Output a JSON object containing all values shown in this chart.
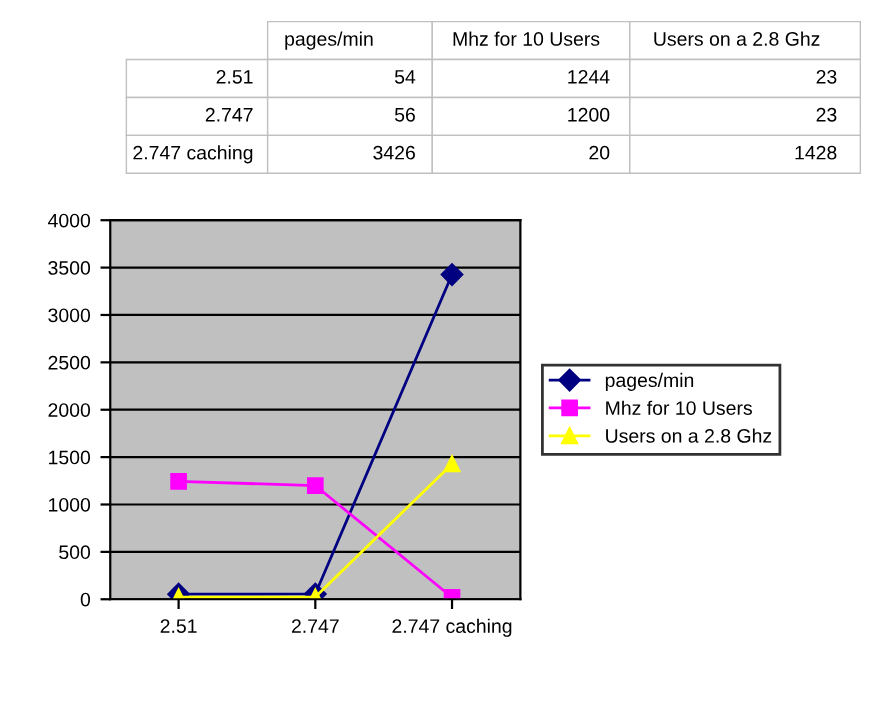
{
  "chart_data": [
    {
      "type": "other",
      "categories": [
        "2.51",
        "2.747",
        "2.747 caching"
      ],
      "series": [
        {
          "name": "pages/min",
          "values": [
            54,
            56,
            3426
          ]
        },
        {
          "name": "Mhz for 10 Users",
          "values": [
            1244,
            1200,
            20
          ]
        },
        {
          "name": "Users on a 2.8 Ghz",
          "values": [
            23,
            23,
            1428
          ]
        }
      ],
      "data_labels": true
    },
    {
      "type": "line",
      "categories": [
        "2.51",
        "2.747",
        "2.747 caching"
      ],
      "series": [
        {
          "name": "pages/min",
          "color": "#000080",
          "marker": "diamond",
          "values": [
            54,
            56,
            3426
          ]
        },
        {
          "name": "Mhz for 10 Users",
          "color": "#ff00ff",
          "marker": "square",
          "values": [
            1244,
            1200,
            20
          ]
        },
        {
          "name": "Users on a 2.8 Ghz",
          "color": "#ffff00",
          "marker": "triangle",
          "values": [
            23,
            23,
            1428
          ]
        }
      ],
      "ylim": [
        0,
        4000
      ],
      "yticks": [
        0,
        500,
        1000,
        1500,
        2000,
        2500,
        3000,
        3500,
        4000
      ],
      "grid": "y",
      "legend": "right"
    }
  ]
}
